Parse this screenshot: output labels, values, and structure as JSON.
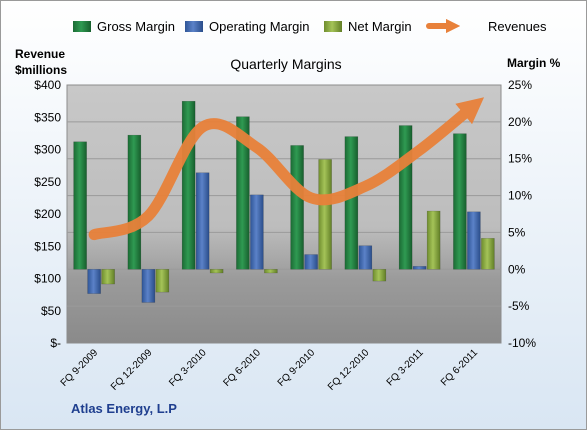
{
  "chart_data": {
    "type": "bar",
    "title": "Quarterly Margins",
    "footer": "Atlas Energy, L.P",
    "categories": [
      "FQ 9-2009",
      "FQ 12-2009",
      "FQ 3-2010",
      "FQ 6-2010",
      "FQ 9-2010",
      "FQ 12-2010",
      "FQ 3-2011",
      "FQ 6-2011"
    ],
    "y_left": {
      "label_line1": "Revenue",
      "label_line2": "$millions",
      "ticks": [
        "$400",
        "$350",
        "$300",
        "$250",
        "$200",
        "$150",
        "$100",
        "$50",
        "$-"
      ],
      "ylim": [
        0,
        400
      ]
    },
    "y_right": {
      "label": "Margin %",
      "ticks": [
        "25%",
        "20%",
        "15%",
        "10%",
        "5%",
        "0%",
        "-5%",
        "-10%"
      ],
      "ylim": [
        -10,
        25
      ]
    },
    "series": [
      {
        "name": "Gross Margin",
        "type": "bar",
        "axis": "right",
        "color": "#1e7a3c",
        "values": [
          17.3,
          18.2,
          22.8,
          20.7,
          16.8,
          18.0,
          19.5,
          18.4
        ]
      },
      {
        "name": "Operating Margin",
        "type": "bar",
        "axis": "right",
        "color": "#3f67b0",
        "values": [
          -3.3,
          -4.5,
          13.1,
          10.1,
          2.0,
          3.2,
          0.4,
          7.8
        ]
      },
      {
        "name": "Net Margin",
        "type": "bar",
        "axis": "right",
        "color": "#8aac3e",
        "values": [
          -2.0,
          -3.1,
          -0.5,
          -0.5,
          14.9,
          -1.6,
          7.9,
          4.2
        ]
      },
      {
        "name": "Revenues",
        "type": "line",
        "axis": "left",
        "color": "#e8813a",
        "values": [
          168,
          197,
          335,
          303,
          225,
          243,
          299,
          368
        ]
      }
    ],
    "legend_position": "top",
    "grid": true
  }
}
